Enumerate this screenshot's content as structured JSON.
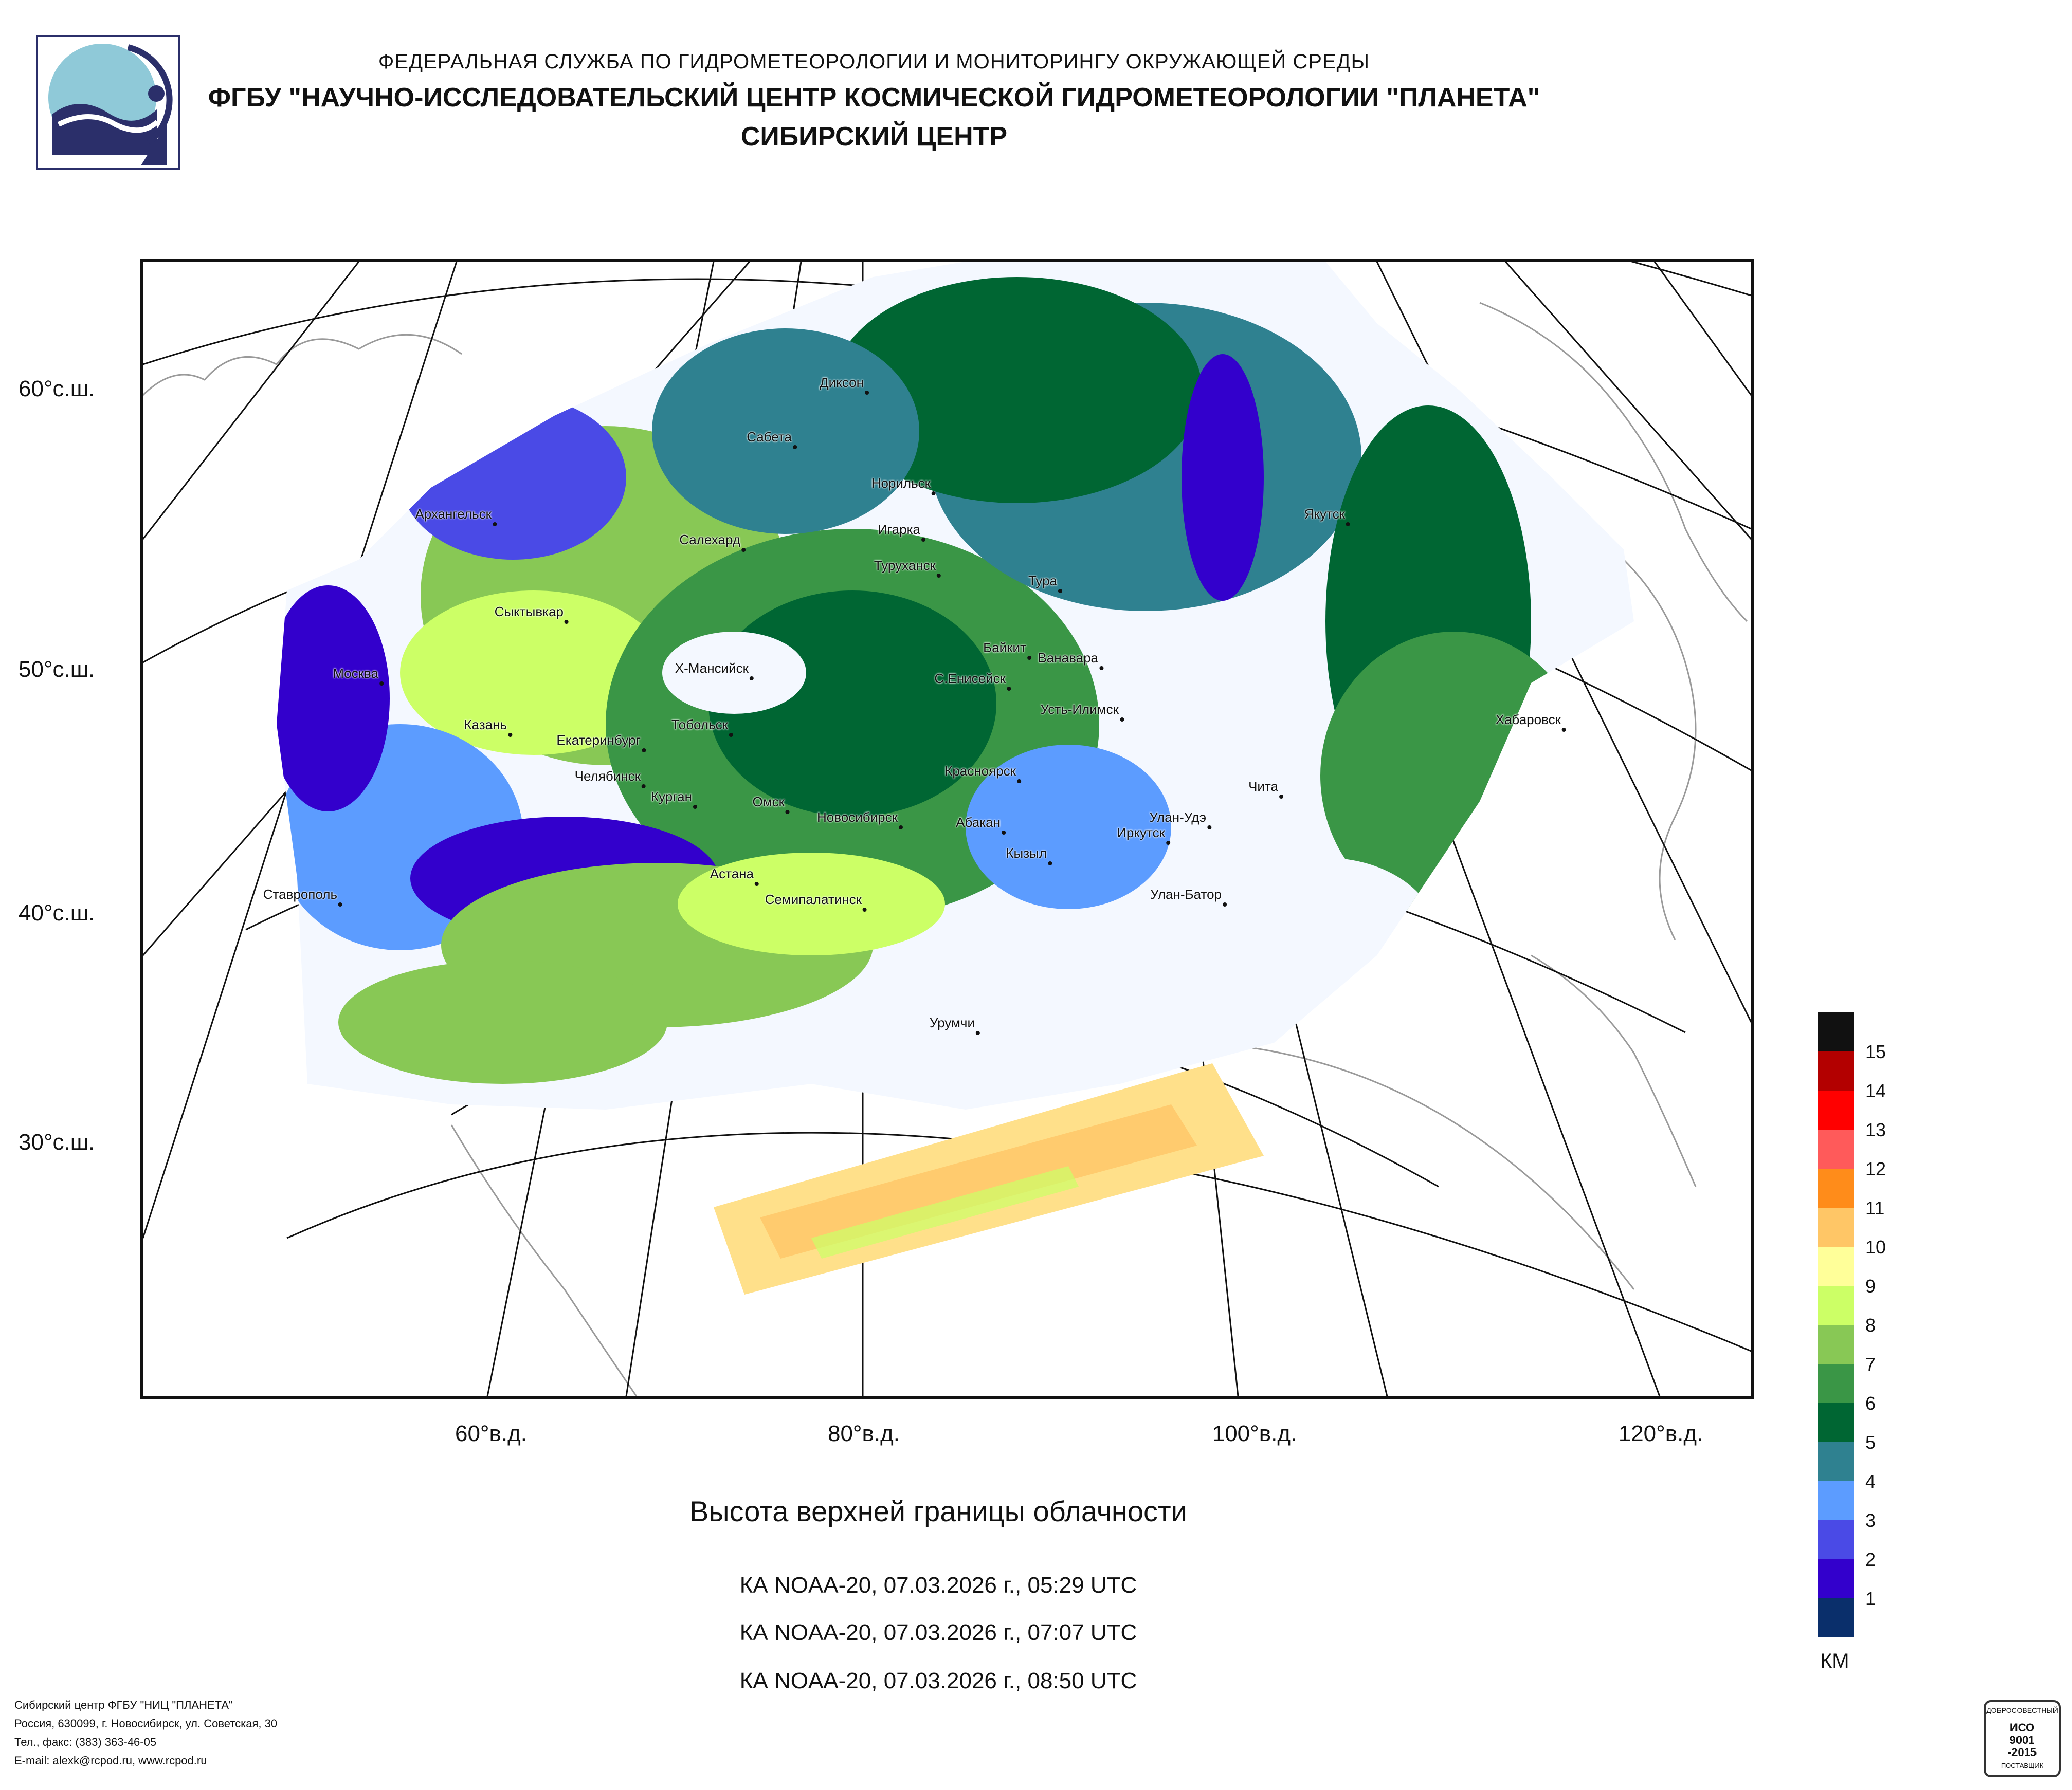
{
  "header": {
    "line1": "ФЕДЕРАЛЬНАЯ СЛУЖБА ПО ГИДРОМЕТЕОРОЛОГИИ И МОНИТОРИНГУ ОКРУЖАЮЩЕЙ СРЕДЫ",
    "line2": "ФГБУ \"НАУЧНО-ИССЛЕДОВАТЕЛЬСКИЙ ЦЕНТР КОСМИЧЕСКОЙ ГИДРОМЕТЕОРОЛОГИИ \"ПЛАНЕТА\"",
    "line3": "СИБИРСКИЙ ЦЕНТР"
  },
  "map": {
    "lat_labels": [
      "60°с.ш.",
      "50°с.ш.",
      "40°с.ш.",
      "30°с.ш."
    ],
    "lon_labels": [
      "60°в.д.",
      "80°в.д.",
      "100°в.д.",
      "120°в.д."
    ],
    "cities": {
      "dikson": "Диксон",
      "sabeta": "Сабета",
      "norilsk": "Норильск",
      "igarka": "Игарка",
      "turukhansk": "Туруханск",
      "tura": "Тура",
      "yakutsk": "Якутск",
      "arkhangelsk": "Архангельск",
      "salekhard": "Салехард",
      "syktyvkar": "Сыктывкар",
      "baikit": "Байкит",
      "vanavara": "Ванавара",
      "moskva": "Москва",
      "khmansiysk": "Х-Мансийск",
      "senisseysk": "С.Енисейск",
      "ustilimsk": "Усть-Илимск",
      "khabarovsk": "Хабаровск",
      "kazan": "Казань",
      "tobolsk": "Тобольск",
      "ekaterinburg": "Екатеринбург",
      "krasnoyarsk": "Красноярск",
      "chelyabinsk": "Челябинск",
      "chita": "Чита",
      "kurgan": "Курган",
      "omsk": "Омск",
      "novosibirsk": "Новосибирск",
      "ulanude": "Улан-Удэ",
      "abakan": "Абакан",
      "irkutsk": "Иркутск",
      "kyzyl": "Кызыл",
      "astana": "Астана",
      "stavropol": "Ставрополь",
      "semipalatinsk": "Семипалатинск",
      "ulanbator": "Улан-Батор",
      "urumchi": "Урумчи"
    }
  },
  "title": "Высота верхней границы облачности",
  "passes": [
    "КА NOAA-20, 07.03.2026 г., 05:29 UTC",
    "КА NOAA-20, 07.03.2026 г., 07:07 UTC",
    "КА NOAA-20, 07.03.2026 г., 08:50 UTC"
  ],
  "legend": {
    "unit": "КМ",
    "labels": [
      "15",
      "14",
      "13",
      "12",
      "11",
      "10",
      "9",
      "8",
      "7",
      "6",
      "5",
      "4",
      "3",
      "2",
      "1"
    ],
    "colors": [
      "#111111",
      "#b30000",
      "#ff0000",
      "#ff5a5a",
      "#ff8c1a",
      "#ffc666",
      "#ffff99",
      "#ccff66",
      "#88c855",
      "#3a9646",
      "#006633",
      "#2f8190",
      "#5c9cff",
      "#4a4ae6",
      "#3300cc",
      "#0a2f6b"
    ]
  },
  "footer": {
    "line1": "Сибирский центр ФГБУ \"НИЦ \"ПЛАНЕТА\"",
    "line2": "Россия, 630099, г. Новосибирск, ул. Советская, 30",
    "line3": "Тел., факс: (383) 363-46-05",
    "line4": "E-mail: alexk@rcpod.ru, www.rcpod.ru"
  },
  "certificate": {
    "top": "ДОБРОСОВЕСТНЫЙ",
    "code1": "ИСО",
    "code2": "9001",
    "code3": "-2015",
    "bottom": "ПОСТАВЩИК"
  }
}
